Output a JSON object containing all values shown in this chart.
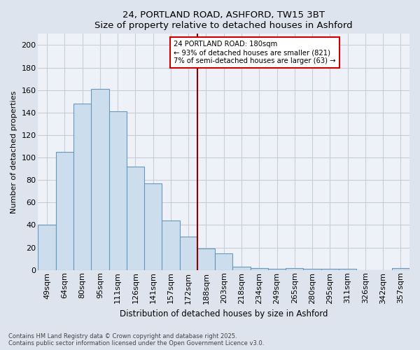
{
  "title1": "24, PORTLAND ROAD, ASHFORD, TW15 3BT",
  "title2": "Size of property relative to detached houses in Ashford",
  "xlabel": "Distribution of detached houses by size in Ashford",
  "ylabel": "Number of detached properties",
  "bar_labels": [
    "49sqm",
    "64sqm",
    "80sqm",
    "95sqm",
    "111sqm",
    "126sqm",
    "141sqm",
    "157sqm",
    "172sqm",
    "188sqm",
    "203sqm",
    "218sqm",
    "234sqm",
    "249sqm",
    "265sqm",
    "280sqm",
    "295sqm",
    "311sqm",
    "326sqm",
    "342sqm",
    "357sqm"
  ],
  "bar_values": [
    40,
    105,
    148,
    161,
    141,
    92,
    77,
    44,
    30,
    19,
    15,
    3,
    2,
    1,
    2,
    1,
    1,
    1,
    0,
    0,
    2
  ],
  "bar_color": "#ccdded",
  "bar_edgecolor": "#6699bb",
  "vline_color": "#8b0000",
  "annotation_text": "24 PORTLAND ROAD: 180sqm\n← 93% of detached houses are smaller (821)\n7% of semi-detached houses are larger (63) →",
  "annotation_box_color": "white",
  "annotation_box_edgecolor": "#cc0000",
  "ylim": [
    0,
    210
  ],
  "yticks": [
    0,
    20,
    40,
    60,
    80,
    100,
    120,
    140,
    160,
    180,
    200
  ],
  "plot_bg_color": "#eef2f8",
  "outer_bg_color": "#dde4ee",
  "footer1": "Contains HM Land Registry data © Crown copyright and database right 2025.",
  "footer2": "Contains public sector information licensed under the Open Government Licence v3.0.",
  "grid_color": "#c8cdd8",
  "title_fontsize": 9.5,
  "axis_fontsize": 8,
  "tick_fontsize": 8,
  "footer_fontsize": 6.0
}
